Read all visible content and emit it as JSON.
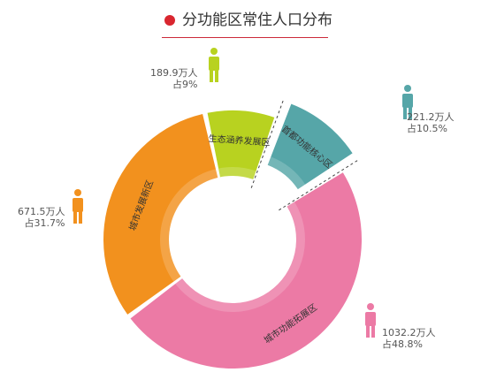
{
  "title": "分功能区常住人口分布",
  "colors": {
    "title_dot": "#d9262f",
    "title_underline": "#cc2a3a"
  },
  "chart_data": {
    "type": "pie",
    "variant": "donut-exploded",
    "title": "分功能区常住人口分布",
    "unit": "万人",
    "slices": [
      {
        "name": "首都功能核心区",
        "value": 221.2,
        "value_label": "221.2万人",
        "share_label": "占10.5%",
        "percent": 10.5,
        "color": "#56a6a8",
        "exploded": true
      },
      {
        "name": "城市功能拓展区",
        "value": 1032.2,
        "value_label": "1032.2万人",
        "share_label": "占48.8%",
        "percent": 48.8,
        "color": "#ec7aa5"
      },
      {
        "name": "城市发展新区",
        "value": 671.5,
        "value_label": "671.5万人",
        "share_label": "占31.7%",
        "percent": 31.7,
        "color": "#f2911e"
      },
      {
        "name": "生态涵养发展区",
        "value": 189.9,
        "value_label": "189.9万人",
        "share_label": "占9%",
        "percent": 9,
        "color": "#b8d220"
      }
    ]
  }
}
